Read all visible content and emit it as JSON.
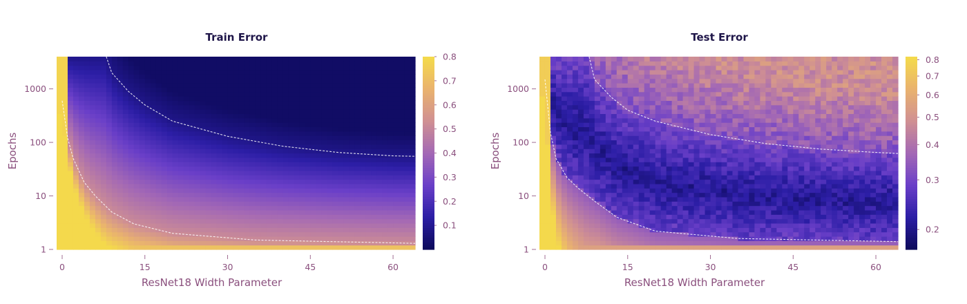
{
  "chart_data": [
    {
      "type": "heatmap",
      "title": "Train Error",
      "xlabel": "ResNet18 Width Parameter",
      "ylabel": "Epochs",
      "x_ticks": [
        0,
        15,
        30,
        45,
        60
      ],
      "y_ticks": [
        1,
        10,
        100,
        1000
      ],
      "y_scale": "log",
      "xlim": [
        -1,
        64
      ],
      "ylim": [
        1,
        4000
      ],
      "colorbar": {
        "ticks": [
          0.1,
          0.2,
          0.3,
          0.4,
          0.5,
          0.6,
          0.7,
          0.8
        ],
        "range": [
          0.0,
          0.8
        ],
        "scale": "linear"
      },
      "colormap": [
        "#0d0a5c",
        "#2c1ea6",
        "#6a3fc8",
        "#a368b5",
        "#cf8f93",
        "#e9b26f",
        "#f4d94c"
      ],
      "contours": [
        {
          "level": "upper",
          "points": [
            [
              8,
              4000
            ],
            [
              9,
              2000
            ],
            [
              12,
              900
            ],
            [
              15,
              500
            ],
            [
              20,
              250
            ],
            [
              30,
              130
            ],
            [
              40,
              85
            ],
            [
              50,
              65
            ],
            [
              60,
              56
            ],
            [
              64,
              55
            ]
          ]
        },
        {
          "level": "lower",
          "points": [
            [
              0,
              600
            ],
            [
              1,
              120
            ],
            [
              2,
              50
            ],
            [
              4,
              18
            ],
            [
              6,
              10
            ],
            [
              9,
              5
            ],
            [
              13,
              3
            ],
            [
              20,
              2
            ],
            [
              35,
              1.5
            ],
            [
              64,
              1.3
            ]
          ]
        }
      ]
    },
    {
      "type": "heatmap",
      "title": "Test Error",
      "xlabel": "ResNet18 Width Parameter",
      "ylabel": "Epochs",
      "x_ticks": [
        0,
        15,
        30,
        45,
        60
      ],
      "y_ticks": [
        1,
        10,
        100,
        1000
      ],
      "y_scale": "log",
      "xlim": [
        -1,
        64
      ],
      "ylim": [
        1,
        4000
      ],
      "colorbar": {
        "ticks": [
          0.2,
          0.3,
          0.4,
          0.5,
          0.6,
          0.7,
          0.8
        ],
        "range": [
          0.17,
          0.82
        ],
        "scale": "log"
      },
      "colormap": [
        "#0d0a5c",
        "#2c1ea6",
        "#6a3fc8",
        "#a368b5",
        "#cf8f93",
        "#e9b26f",
        "#f4d94c"
      ],
      "contours": [
        {
          "level": "upper",
          "points": [
            [
              8,
              4000
            ],
            [
              9,
              1500
            ],
            [
              12,
              700
            ],
            [
              15,
              400
            ],
            [
              20,
              250
            ],
            [
              30,
              140
            ],
            [
              40,
              95
            ],
            [
              50,
              75
            ],
            [
              60,
              65
            ],
            [
              64,
              62
            ]
          ]
        },
        {
          "level": "lower",
          "points": [
            [
              0,
              1500
            ],
            [
              1,
              150
            ],
            [
              2,
              50
            ],
            [
              4,
              22
            ],
            [
              6,
              14
            ],
            [
              9,
              8
            ],
            [
              13,
              4
            ],
            [
              20,
              2.2
            ],
            [
              35,
              1.6
            ],
            [
              64,
              1.4
            ]
          ]
        }
      ]
    }
  ]
}
